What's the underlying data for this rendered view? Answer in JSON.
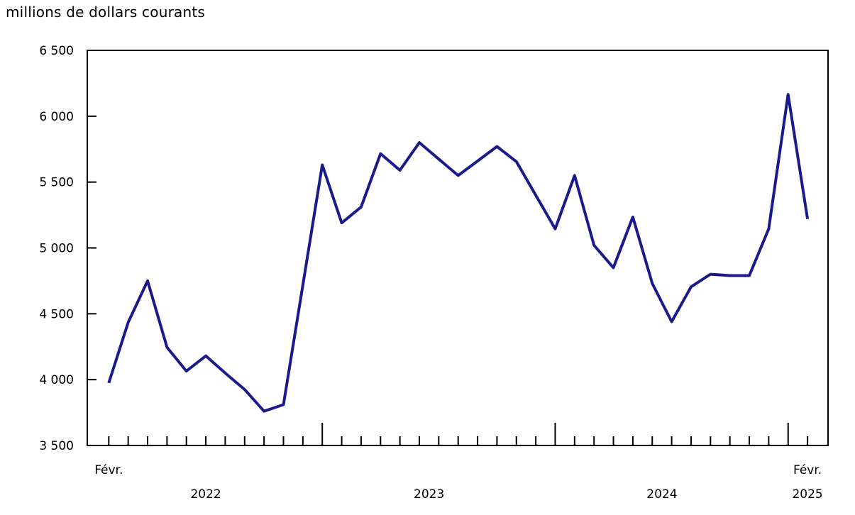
{
  "chart_data": {
    "type": "line",
    "title": "millions de dollars courants",
    "grid": false,
    "legend_position": "none",
    "line_color": "#1a1a8c",
    "axis_color": "#000000",
    "y_axis": {
      "min": 3500,
      "max": 6500,
      "step": 500,
      "tick_labels": [
        "6 500",
        "6 000",
        "5 500",
        "5 000",
        "4 500",
        "4 000",
        "3 500"
      ]
    },
    "x_axis_labels": {
      "first_month": "Févr.",
      "years": [
        "2022",
        "2023",
        "2024"
      ],
      "last_month": "Févr.",
      "last_year": "2025"
    },
    "x": [
      "2022-02",
      "2022-03",
      "2022-04",
      "2022-05",
      "2022-06",
      "2022-07",
      "2022-08",
      "2022-09",
      "2022-10",
      "2022-11",
      "2022-12",
      "2023-01",
      "2023-02",
      "2023-03",
      "2023-04",
      "2023-05",
      "2023-06",
      "2023-07",
      "2023-08",
      "2023-09",
      "2023-10",
      "2023-11",
      "2023-12",
      "2024-01",
      "2024-02",
      "2024-03",
      "2024-04",
      "2024-05",
      "2024-06",
      "2024-07",
      "2024-08",
      "2024-09",
      "2024-10",
      "2024-11",
      "2024-12",
      "2025-01",
      "2025-02"
    ],
    "values": [
      3975,
      4435,
      4750,
      4245,
      4065,
      4180,
      4050,
      3925,
      3760,
      3810,
      4720,
      5630,
      5190,
      5310,
      5715,
      5590,
      5800,
      5675,
      5550,
      5660,
      5770,
      5655,
      5400,
      5145,
      5550,
      5020,
      4850,
      5235,
      4730,
      4440,
      4705,
      4800,
      4790,
      4790,
      5145,
      6165,
      5220
    ]
  }
}
